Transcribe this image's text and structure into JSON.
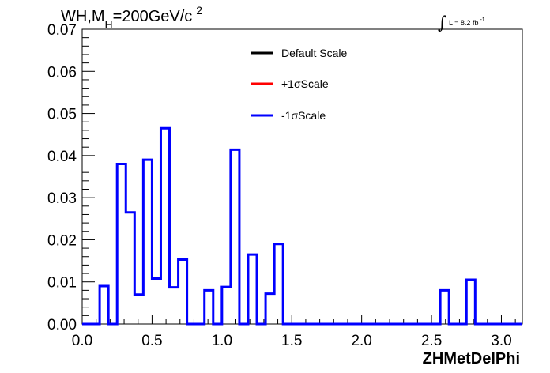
{
  "chart_data": {
    "type": "histogram",
    "title": {
      "main": "WH,M",
      "subscript": "H",
      "rest": "=200GeV/c",
      "superscript": "2"
    },
    "lumi": {
      "text": "L = 8.2 fb",
      "superscript": "-1"
    },
    "xlabel": "ZHMetDelPhi",
    "xlim": [
      0.0,
      3.15
    ],
    "ylim": [
      0.0,
      0.07
    ],
    "x_ticks": [
      {
        "value": 0.0,
        "label": "0.0"
      },
      {
        "value": 0.5,
        "label": "0.5"
      },
      {
        "value": 1.0,
        "label": "1.0"
      },
      {
        "value": 1.5,
        "label": "1.5"
      },
      {
        "value": 2.0,
        "label": "2.0"
      },
      {
        "value": 2.5,
        "label": "2.5"
      },
      {
        "value": 3.0,
        "label": "3.0"
      }
    ],
    "y_ticks": [
      {
        "value": 0.0,
        "label": "0.00"
      },
      {
        "value": 0.01,
        "label": "0.01"
      },
      {
        "value": 0.02,
        "label": "0.02"
      },
      {
        "value": 0.03,
        "label": "0.03"
      },
      {
        "value": 0.04,
        "label": "0.04"
      },
      {
        "value": 0.05,
        "label": "0.05"
      },
      {
        "value": 0.06,
        "label": "0.06"
      },
      {
        "value": 0.07,
        "label": "0.07"
      }
    ],
    "legend": {
      "placement": "top-center",
      "entries": [
        {
          "label": "Default Scale",
          "color": "#000000"
        },
        {
          "label": "+1σScale",
          "color": "#ff0000"
        },
        {
          "label": "-1σScale",
          "color": "#0000ff"
        }
      ]
    },
    "bin_edges": [
      0.0,
      0.0625,
      0.125,
      0.1875,
      0.25,
      0.3125,
      0.375,
      0.4375,
      0.5,
      0.5625,
      0.625,
      0.6875,
      0.75,
      0.8125,
      0.875,
      0.9375,
      1.0,
      1.0625,
      1.125,
      1.1875,
      1.25,
      1.3125,
      1.375,
      1.4375,
      1.5,
      1.5625,
      1.625,
      1.6875,
      1.75,
      1.8125,
      1.875,
      1.9375,
      2.0,
      2.0625,
      2.125,
      2.1875,
      2.25,
      2.3125,
      2.375,
      2.4375,
      2.5,
      2.5625,
      2.625,
      2.6875,
      2.75,
      2.8125,
      2.875,
      2.9375,
      3.0,
      3.0625,
      3.125,
      3.15
    ],
    "series": [
      {
        "label": "-1σScale",
        "color": "#0000ff",
        "values": [
          0,
          0,
          0.009,
          0,
          0.038,
          0.0265,
          0.007,
          0.039,
          0.0108,
          0.0465,
          0.0087,
          0.0153,
          0,
          0,
          0.008,
          0,
          0.0088,
          0.0414,
          0,
          0.0165,
          0,
          0.0072,
          0.019,
          0,
          0,
          0,
          0,
          0,
          0,
          0,
          0,
          0,
          0,
          0,
          0,
          0,
          0,
          0,
          0,
          0,
          0,
          0.008,
          0,
          0,
          0.0105,
          0,
          0,
          0,
          0,
          0,
          0
        ]
      }
    ]
  }
}
